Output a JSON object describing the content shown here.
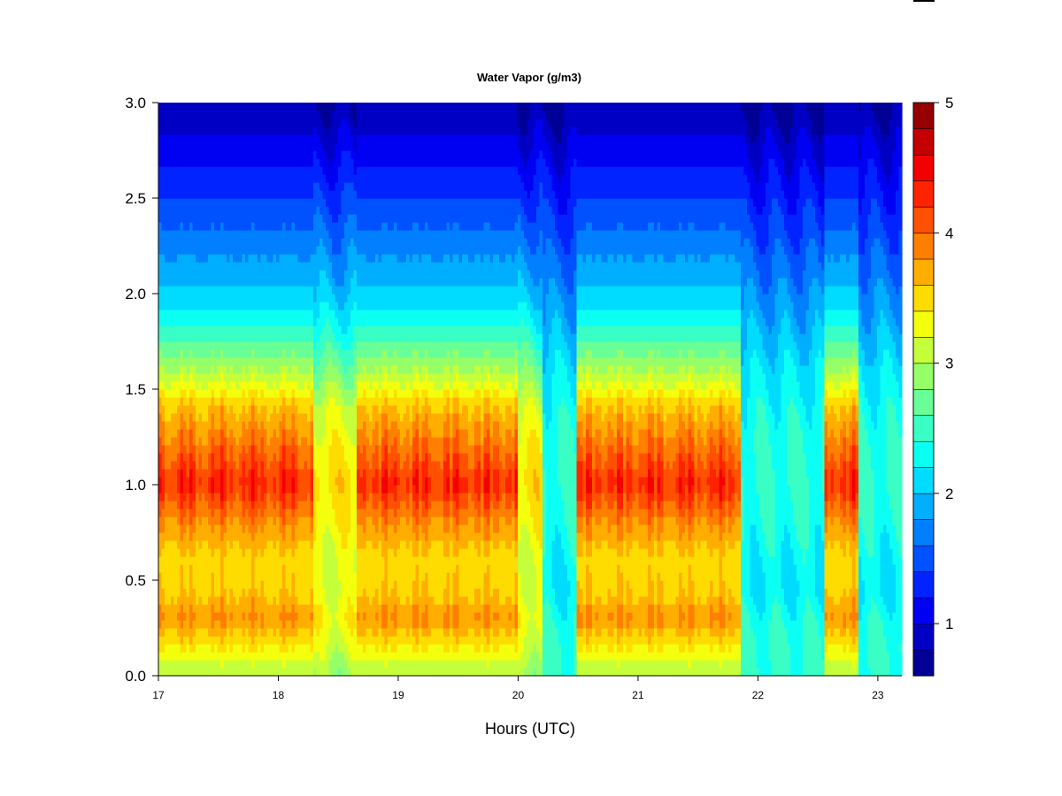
{
  "chart_data": {
    "type": "heatmap",
    "title": "Water Vapor (g/m3)",
    "xlabel": "Hours (UTC)",
    "ylabel": "",
    "xlim": [
      17,
      23.2
    ],
    "ylim": [
      0,
      3
    ],
    "x_ticks": [
      "17",
      "18",
      "19",
      "20",
      "21",
      "22",
      "23"
    ],
    "y_ticks": [
      "0.0",
      "0.5",
      "1.0",
      "1.5",
      "2.0",
      "2.5",
      "3.0"
    ],
    "colorbar": {
      "range": [
        0.6,
        5
      ],
      "ticks": [
        "1",
        "2",
        "3",
        "4",
        "5"
      ],
      "levels": 22
    },
    "profile": {
      "heights_km": [
        0.0,
        0.15,
        0.3,
        0.45,
        0.6,
        0.8,
        1.0,
        1.2,
        1.4,
        1.6,
        1.8,
        2.0,
        2.2,
        2.4,
        2.6,
        2.8,
        3.0
      ],
      "peak_values": [
        3.0,
        3.5,
        4.0,
        3.7,
        3.6,
        4.0,
        4.6,
        4.2,
        3.8,
        3.1,
        2.5,
        2.05,
        1.8,
        1.55,
        1.3,
        1.05,
        0.8
      ],
      "moist_values": [
        2.9,
        3.15,
        3.35,
        3.2,
        3.2,
        3.35,
        3.5,
        3.35,
        3.15,
        2.75,
        2.35,
        2.0,
        1.75,
        1.5,
        1.25,
        1.0,
        0.75
      ],
      "dry_values": [
        2.45,
        2.45,
        2.35,
        2.2,
        2.25,
        2.35,
        2.45,
        2.4,
        2.3,
        2.15,
        1.95,
        1.75,
        1.55,
        1.35,
        1.15,
        0.95,
        0.7
      ]
    },
    "time_regimes": [
      {
        "start": 17.0,
        "end": 18.05,
        "regime": "peak"
      },
      {
        "start": 18.05,
        "end": 18.3,
        "regime": "peak"
      },
      {
        "start": 18.3,
        "end": 18.65,
        "regime": "moist"
      },
      {
        "start": 18.65,
        "end": 19.7,
        "regime": "peak"
      },
      {
        "start": 19.7,
        "end": 20.0,
        "regime": "peak"
      },
      {
        "start": 20.0,
        "end": 20.2,
        "regime": "moist"
      },
      {
        "start": 20.2,
        "end": 20.5,
        "regime": "dry"
      },
      {
        "start": 20.5,
        "end": 21.85,
        "regime": "peak"
      },
      {
        "start": 21.85,
        "end": 22.55,
        "regime": "dry"
      },
      {
        "start": 22.55,
        "end": 22.85,
        "regime": "peak"
      },
      {
        "start": 22.85,
        "end": 23.2,
        "regime": "dry"
      }
    ]
  },
  "colors": {
    "colormap": [
      "#00007f",
      "#0000ff",
      "#007fff",
      "#00ffff",
      "#7fff7f",
      "#ffff00",
      "#ff7f00",
      "#ff0000",
      "#7f0000"
    ]
  }
}
